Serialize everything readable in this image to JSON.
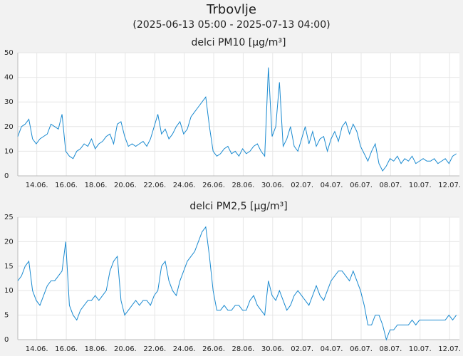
{
  "header": {
    "title": "Trbovlje",
    "subtitle": "(2025-06-13 05:00 - 2025-07-13 04:00)"
  },
  "chart_data": [
    {
      "type": "line",
      "title": "delci PM10 [µg/m³]",
      "color": "#1a8ad0",
      "grid": true,
      "x": [
        13.21,
        13.46,
        13.71,
        13.96,
        14.21,
        14.46,
        14.71,
        14.96,
        15.21,
        15.46,
        15.71,
        15.96,
        16.21,
        16.46,
        16.71,
        16.96,
        17.21,
        17.46,
        17.71,
        17.96,
        18.21,
        18.46,
        18.71,
        18.96,
        19.21,
        19.46,
        19.71,
        19.96,
        20.21,
        20.46,
        20.71,
        20.96,
        21.21,
        21.46,
        21.71,
        21.96,
        22.21,
        22.46,
        22.71,
        22.96,
        23.21,
        23.46,
        23.71,
        23.96,
        24.21,
        24.46,
        24.71,
        24.96,
        25.21,
        25.46,
        25.71,
        25.96,
        26.21,
        26.46,
        26.71,
        26.96,
        27.21,
        27.46,
        27.71,
        27.96,
        28.21,
        28.46,
        28.71,
        28.96,
        29.21,
        29.46,
        29.71,
        29.96,
        30.21,
        30.46,
        30.71,
        30.96,
        31.21,
        31.46,
        31.71,
        31.96,
        32.21,
        32.46,
        32.71,
        32.96,
        33.21,
        33.46,
        33.71,
        33.96,
        34.21,
        34.46,
        34.71,
        34.96,
        35.21,
        35.46,
        35.71,
        35.96,
        36.21,
        36.46,
        36.71,
        36.96,
        37.21,
        37.46,
        37.71,
        37.96,
        38.21,
        38.46,
        38.71,
        38.96,
        39.21,
        39.46,
        39.71,
        39.96,
        40.21,
        40.46,
        40.71,
        40.96,
        41.21,
        41.46,
        41.71,
        41.96,
        42.21,
        42.46,
        42.71,
        42.96
      ],
      "values": [
        16,
        20,
        21,
        23,
        15,
        13,
        15,
        16,
        17,
        21,
        20,
        19,
        25,
        10,
        8,
        7,
        10,
        11,
        13,
        12,
        15,
        11,
        13,
        14,
        16,
        17,
        13,
        21,
        22,
        16,
        12,
        13,
        12,
        13,
        14,
        12,
        15,
        20,
        25,
        17,
        19,
        15,
        17,
        20,
        22,
        17,
        19,
        24,
        26,
        28,
        30,
        32,
        20,
        10,
        8,
        9,
        11,
        12,
        9,
        10,
        8,
        11,
        9,
        10,
        12,
        13,
        10,
        8,
        44,
        16,
        20,
        38,
        12,
        15,
        20,
        12,
        10,
        15,
        20,
        13,
        18,
        12,
        15,
        16,
        10,
        15,
        18,
        14,
        20,
        22,
        17,
        21,
        18,
        12,
        9,
        6,
        10,
        13,
        5,
        2,
        4,
        7,
        6,
        8,
        5,
        7,
        6,
        8,
        5,
        6,
        7,
        6,
        6,
        7,
        5,
        6,
        7,
        5,
        8,
        9
      ],
      "xlim": [
        13.21,
        43.17
      ],
      "ylim": [
        0,
        50
      ],
      "yticks": [
        0,
        10,
        20,
        30,
        40,
        50
      ],
      "xticks": [
        {
          "value": 14.5,
          "label": "14.06."
        },
        {
          "value": 16.5,
          "label": "16.06."
        },
        {
          "value": 18.5,
          "label": "18.06."
        },
        {
          "value": 20.5,
          "label": "20.06."
        },
        {
          "value": 22.5,
          "label": "22.06."
        },
        {
          "value": 24.5,
          "label": "24.06."
        },
        {
          "value": 26.5,
          "label": "26.06."
        },
        {
          "value": 28.5,
          "label": "28.06."
        },
        {
          "value": 30.5,
          "label": "30.06."
        },
        {
          "value": 32.5,
          "label": "02.07."
        },
        {
          "value": 34.5,
          "label": "04.07."
        },
        {
          "value": 36.5,
          "label": "06.07."
        },
        {
          "value": 38.5,
          "label": "08.07."
        },
        {
          "value": 40.5,
          "label": "10.07."
        },
        {
          "value": 42.5,
          "label": "12.07."
        }
      ]
    },
    {
      "type": "line",
      "title": "delci PM2,5 [µg/m³]",
      "color": "#1a8ad0",
      "grid": true,
      "x": [
        13.21,
        13.46,
        13.71,
        13.96,
        14.21,
        14.46,
        14.71,
        14.96,
        15.21,
        15.46,
        15.71,
        15.96,
        16.21,
        16.46,
        16.71,
        16.96,
        17.21,
        17.46,
        17.71,
        17.96,
        18.21,
        18.46,
        18.71,
        18.96,
        19.21,
        19.46,
        19.71,
        19.96,
        20.21,
        20.46,
        20.71,
        20.96,
        21.21,
        21.46,
        21.71,
        21.96,
        22.21,
        22.46,
        22.71,
        22.96,
        23.21,
        23.46,
        23.71,
        23.96,
        24.21,
        24.46,
        24.71,
        24.96,
        25.21,
        25.46,
        25.71,
        25.96,
        26.21,
        26.46,
        26.71,
        26.96,
        27.21,
        27.46,
        27.71,
        27.96,
        28.21,
        28.46,
        28.71,
        28.96,
        29.21,
        29.46,
        29.71,
        29.96,
        30.21,
        30.46,
        30.71,
        30.96,
        31.21,
        31.46,
        31.71,
        31.96,
        32.21,
        32.46,
        32.71,
        32.96,
        33.21,
        33.46,
        33.71,
        33.96,
        34.21,
        34.46,
        34.71,
        34.96,
        35.21,
        35.46,
        35.71,
        35.96,
        36.21,
        36.46,
        36.71,
        36.96,
        37.21,
        37.46,
        37.71,
        37.96,
        38.21,
        38.46,
        38.71,
        38.96,
        39.21,
        39.46,
        39.71,
        39.96,
        40.21,
        40.46,
        40.71,
        40.96,
        41.21,
        41.46,
        41.71,
        41.96,
        42.21,
        42.46,
        42.71,
        42.96
      ],
      "values": [
        12,
        13,
        15,
        16,
        10,
        8,
        7,
        9,
        11,
        12,
        12,
        13,
        14,
        20,
        7,
        5,
        4,
        6,
        7,
        8,
        8,
        9,
        8,
        9,
        10,
        14,
        16,
        17,
        8,
        5,
        6,
        7,
        8,
        7,
        8,
        8,
        7,
        9,
        10,
        15,
        16,
        12,
        10,
        9,
        12,
        14,
        16,
        17,
        18,
        20,
        22,
        23,
        17,
        10,
        6,
        6,
        7,
        6,
        6,
        7,
        7,
        6,
        6,
        8,
        9,
        7,
        6,
        5,
        12,
        9,
        8,
        10,
        8,
        6,
        7,
        9,
        10,
        9,
        8,
        7,
        9,
        11,
        9,
        8,
        10,
        12,
        13,
        14,
        14,
        13,
        12,
        14,
        12,
        10,
        7,
        3,
        3,
        5,
        5,
        3,
        0,
        2,
        2,
        3,
        3,
        3,
        3,
        4,
        3,
        4,
        4,
        4,
        4,
        4,
        4,
        4,
        4,
        5,
        4,
        5
      ],
      "xlim": [
        13.21,
        43.17
      ],
      "ylim": [
        0,
        25
      ],
      "yticks": [
        0,
        5,
        10,
        15,
        20,
        25
      ],
      "xticks": [
        {
          "value": 14.5,
          "label": "14.06."
        },
        {
          "value": 16.5,
          "label": "16.06."
        },
        {
          "value": 18.5,
          "label": "18.06."
        },
        {
          "value": 20.5,
          "label": "20.06."
        },
        {
          "value": 22.5,
          "label": "22.06."
        },
        {
          "value": 24.5,
          "label": "24.06."
        },
        {
          "value": 26.5,
          "label": "26.06."
        },
        {
          "value": 28.5,
          "label": "28.06."
        },
        {
          "value": 30.5,
          "label": "30.06."
        },
        {
          "value": 32.5,
          "label": "02.07."
        },
        {
          "value": 34.5,
          "label": "04.07."
        },
        {
          "value": 36.5,
          "label": "06.07."
        },
        {
          "value": 38.5,
          "label": "08.07."
        },
        {
          "value": 40.5,
          "label": "10.07."
        },
        {
          "value": 42.5,
          "label": "12.07."
        }
      ]
    }
  ]
}
